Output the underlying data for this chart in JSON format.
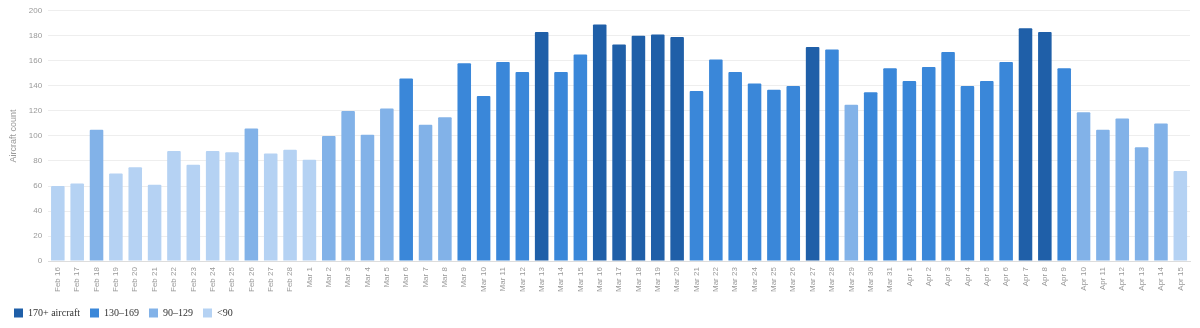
{
  "chart_data": {
    "type": "bar",
    "ylabel": "Aircraft count",
    "categories": [
      "Feb 16",
      "Feb 17",
      "Feb 18",
      "Feb 19",
      "Feb 20",
      "Feb 21",
      "Feb 22",
      "Feb 23",
      "Feb 24",
      "Feb 25",
      "Feb 26",
      "Feb 27",
      "Feb 28",
      "Mar 1",
      "Mar 2",
      "Mar 3",
      "Mar 4",
      "Mar 5",
      "Mar 6",
      "Mar 7",
      "Mar 8",
      "Mar 9",
      "Mar 10",
      "Mar 11",
      "Mar 12",
      "Mar 13",
      "Mar 14",
      "Mar 15",
      "Mar 16",
      "Mar 17",
      "Mar 18",
      "Mar 19",
      "Mar 20",
      "Mar 21",
      "Mar 22",
      "Mar 23",
      "Mar 24",
      "Mar 25",
      "Mar 26",
      "Mar 27",
      "Mar 28",
      "Mar 29",
      "Mar 30",
      "Mar 31",
      "Apr 1",
      "Apr 2",
      "Apr 3",
      "Apr 4",
      "Apr 5",
      "Apr 6",
      "Apr 7",
      "Apr 8",
      "Apr 9",
      "Apr 10",
      "Apr 11",
      "Apr 12",
      "Apr 13",
      "Apr 14",
      "Apr 15"
    ],
    "series": [
      {
        "name": "170+ aircraft",
        "color": "#1f5fa8",
        "values": [
          null,
          null,
          null,
          null,
          null,
          null,
          null,
          null,
          null,
          null,
          null,
          null,
          null,
          null,
          null,
          null,
          null,
          null,
          null,
          null,
          null,
          null,
          null,
          null,
          null,
          183,
          null,
          null,
          189,
          173,
          180,
          181,
          179,
          null,
          null,
          null,
          null,
          null,
          null,
          171,
          null,
          null,
          null,
          null,
          null,
          null,
          null,
          null,
          null,
          null,
          186,
          183,
          null,
          null,
          null,
          null,
          null,
          null,
          null
        ]
      },
      {
        "name": "130–169",
        "color": "#3a87d9",
        "values": [
          null,
          null,
          null,
          null,
          null,
          null,
          null,
          null,
          null,
          null,
          null,
          null,
          null,
          null,
          null,
          null,
          null,
          null,
          146,
          null,
          null,
          158,
          132,
          159,
          151,
          null,
          151,
          165,
          null,
          null,
          null,
          null,
          null,
          136,
          161,
          151,
          142,
          137,
          140,
          null,
          169,
          null,
          135,
          154,
          144,
          155,
          167,
          140,
          144,
          159,
          null,
          null,
          154,
          null,
          null,
          null,
          null,
          null,
          null
        ]
      },
      {
        "name": "90–129",
        "color": "#82b2e8",
        "values": [
          null,
          null,
          105,
          null,
          null,
          null,
          null,
          null,
          null,
          null,
          106,
          null,
          null,
          null,
          100,
          120,
          101,
          122,
          null,
          109,
          115,
          null,
          null,
          null,
          null,
          null,
          null,
          null,
          null,
          null,
          null,
          null,
          null,
          null,
          null,
          null,
          null,
          null,
          null,
          null,
          null,
          125,
          null,
          null,
          null,
          null,
          null,
          null,
          null,
          null,
          null,
          null,
          null,
          119,
          105,
          114,
          91,
          110,
          null
        ]
      },
      {
        "name": "<90",
        "color": "#b5d2f3",
        "values": [
          60,
          62,
          null,
          70,
          75,
          61,
          88,
          77,
          88,
          87,
          null,
          86,
          89,
          81,
          null,
          null,
          null,
          null,
          null,
          null,
          null,
          null,
          null,
          null,
          null,
          null,
          null,
          null,
          null,
          null,
          null,
          null,
          null,
          null,
          null,
          null,
          null,
          null,
          null,
          null,
          null,
          null,
          null,
          null,
          null,
          null,
          null,
          null,
          null,
          null,
          null,
          null,
          null,
          null,
          null,
          null,
          null,
          null,
          72
        ]
      }
    ],
    "ylim": [
      0,
      200
    ],
    "yticks": [
      0,
      20,
      40,
      60,
      80,
      100,
      120,
      140,
      160,
      180,
      200
    ],
    "grid": "y",
    "legend": "bottom left"
  }
}
